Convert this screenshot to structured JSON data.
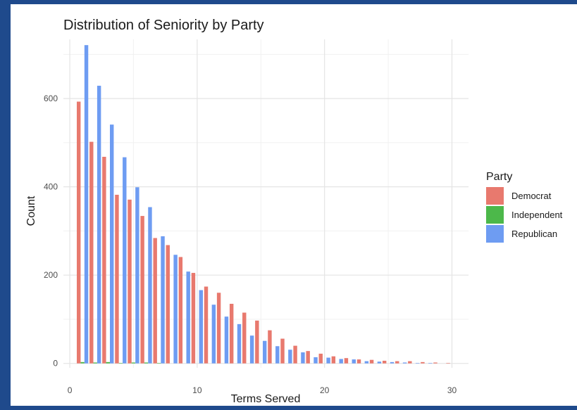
{
  "chart_data": {
    "type": "bar",
    "title": "Distribution of Seniority by Party",
    "xlabel": "Terms Served",
    "ylabel": "Count",
    "xlim": [
      -0.5,
      31.3
    ],
    "ylim": [
      -10,
      734
    ],
    "xticks": [
      0,
      10,
      20,
      30
    ],
    "yticks": [
      0,
      200,
      400,
      600
    ],
    "grid": true,
    "legend": {
      "title": "Party",
      "position": "right"
    },
    "x": [
      1,
      2,
      3,
      4,
      5,
      6,
      7,
      8,
      9,
      10,
      11,
      12,
      13,
      14,
      15,
      16,
      17,
      18,
      19,
      20,
      21,
      22,
      23,
      24,
      25,
      26,
      27,
      28,
      29,
      30
    ],
    "series": [
      {
        "name": "Democrat",
        "color": "#e8796e",
        "values": [
          593,
          502,
          468,
          382,
          371,
          334,
          284,
          268,
          241,
          205,
          174,
          160,
          135,
          115,
          97,
          75,
          56,
          40,
          28,
          22,
          16,
          12,
          9,
          8,
          6,
          5,
          5,
          3,
          2,
          1
        ]
      },
      {
        "name": "Independent",
        "color": "#4cb84a",
        "values": [
          3,
          2,
          3,
          1,
          2,
          2,
          1,
          0,
          0,
          0,
          0,
          0,
          0,
          0,
          0,
          0,
          0,
          0,
          0,
          0,
          0,
          0,
          0,
          0,
          0,
          0,
          0,
          0,
          0,
          0
        ]
      },
      {
        "name": "Republican",
        "color": "#6e9cf2",
        "values": [
          721,
          629,
          541,
          467,
          399,
          354,
          288,
          246,
          208,
          166,
          133,
          106,
          89,
          63,
          51,
          39,
          31,
          25,
          14,
          13,
          10,
          9,
          5,
          4,
          3,
          2,
          1,
          1,
          0,
          0
        ]
      }
    ]
  }
}
